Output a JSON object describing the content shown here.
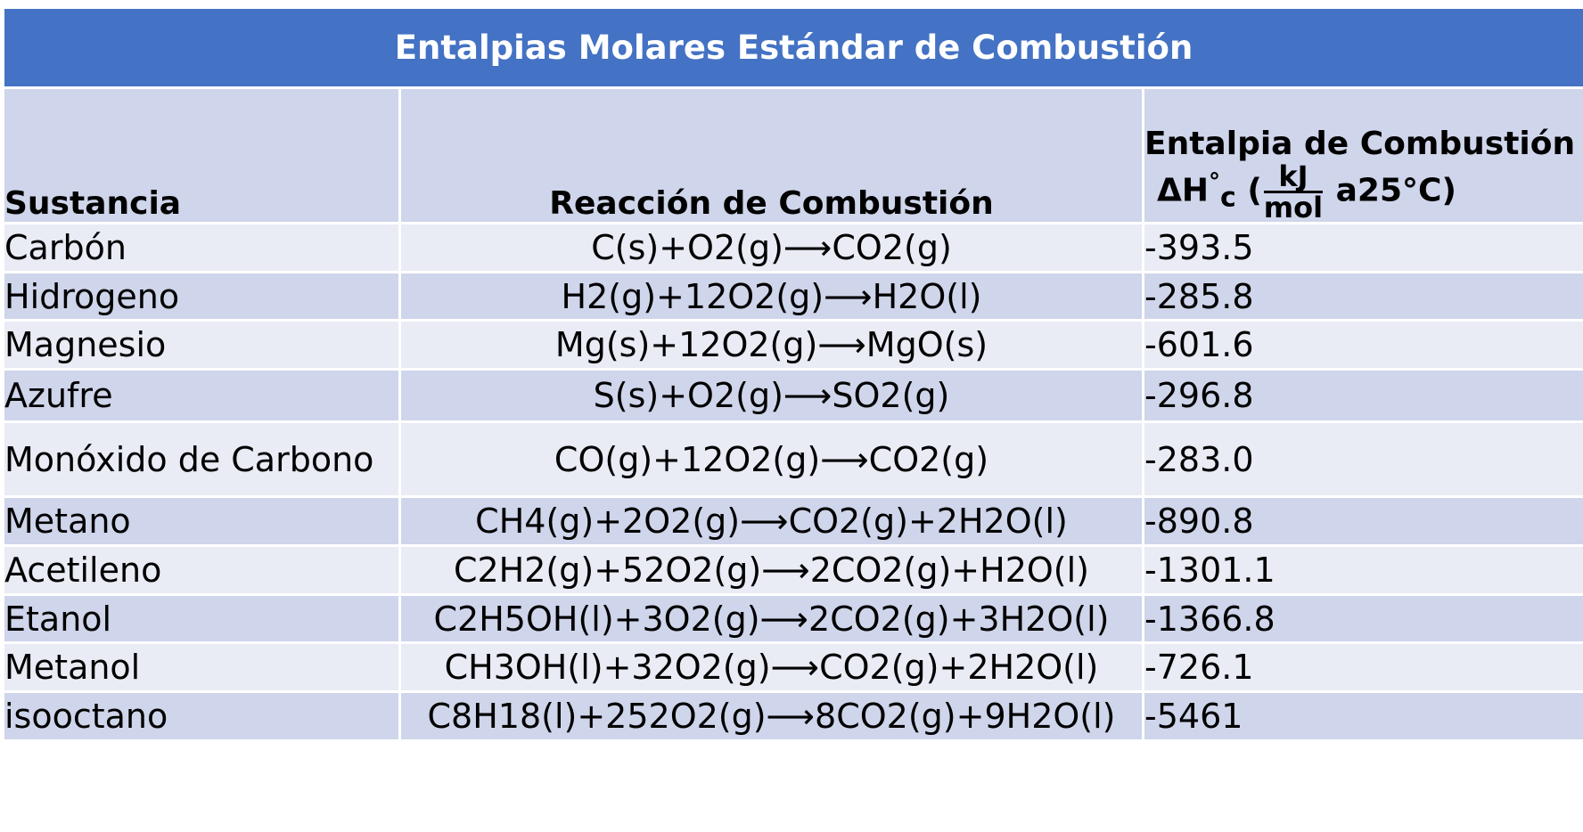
{
  "table": {
    "title": "Entalpias Molares Estándar de Combustión",
    "header": {
      "col1": "Sustancia",
      "col2": "Reacción de Combustión",
      "col3_line1": "Entalpia de Combustión",
      "col3_symbol": "ΔH",
      "col3_degree": "°",
      "col3_sub": "c",
      "col3_open": "(",
      "col3_unit_num": "kJ",
      "col3_unit_den": "mol",
      "col3_tail": "a25°C)"
    },
    "rows": [
      {
        "substance": "Carbón",
        "reaction": "C(s)+O2(g)⟶CO2(g)",
        "enthalpy": "-393.5"
      },
      {
        "substance": "Hidrogeno",
        "reaction": "H2(g)+12O2(g)⟶H2O(l)",
        "enthalpy": "-285.8"
      },
      {
        "substance": "Magnesio",
        "reaction": "Mg(s)+12O2(g)⟶MgO(s)",
        "enthalpy": "-601.6"
      },
      {
        "substance": "Azufre",
        "reaction": "S(s)+O2(g)⟶SO2(g)",
        "enthalpy": "-296.8"
      },
      {
        "substance": "Monóxido de Carbono",
        "reaction": "CO(g)+12O2(g)⟶CO2(g)",
        "enthalpy": "-283.0"
      },
      {
        "substance": "Metano",
        "reaction": "CH4(g)+2O2(g)⟶CO2(g)+2H2O(l)",
        "enthalpy": "-890.8"
      },
      {
        "substance": "Acetileno",
        "reaction": "C2H2(g)+52O2(g)⟶2CO2(g)+H2O(l)",
        "enthalpy": "-1301.1"
      },
      {
        "substance": "Etanol",
        "reaction": "C2H5OH(l)+3O2(g)⟶2CO2(g)+3H2O(l)",
        "enthalpy": "-1366.8"
      },
      {
        "substance": "Metanol",
        "reaction": "CH3OH(l)+32O2(g)⟶CO2(g)+2H2O(l)",
        "enthalpy": "-726.1"
      },
      {
        "substance": "isooctano",
        "reaction": "C8H18(l)+252O2(g)⟶8CO2(g)+9H2O(l)",
        "enthalpy": "-5461"
      }
    ]
  },
  "colors": {
    "title_bg": "#4472c4",
    "header_bg": "#cfd5ea",
    "row_dark": "#cfd5ea",
    "row_light": "#e9ebf5"
  }
}
